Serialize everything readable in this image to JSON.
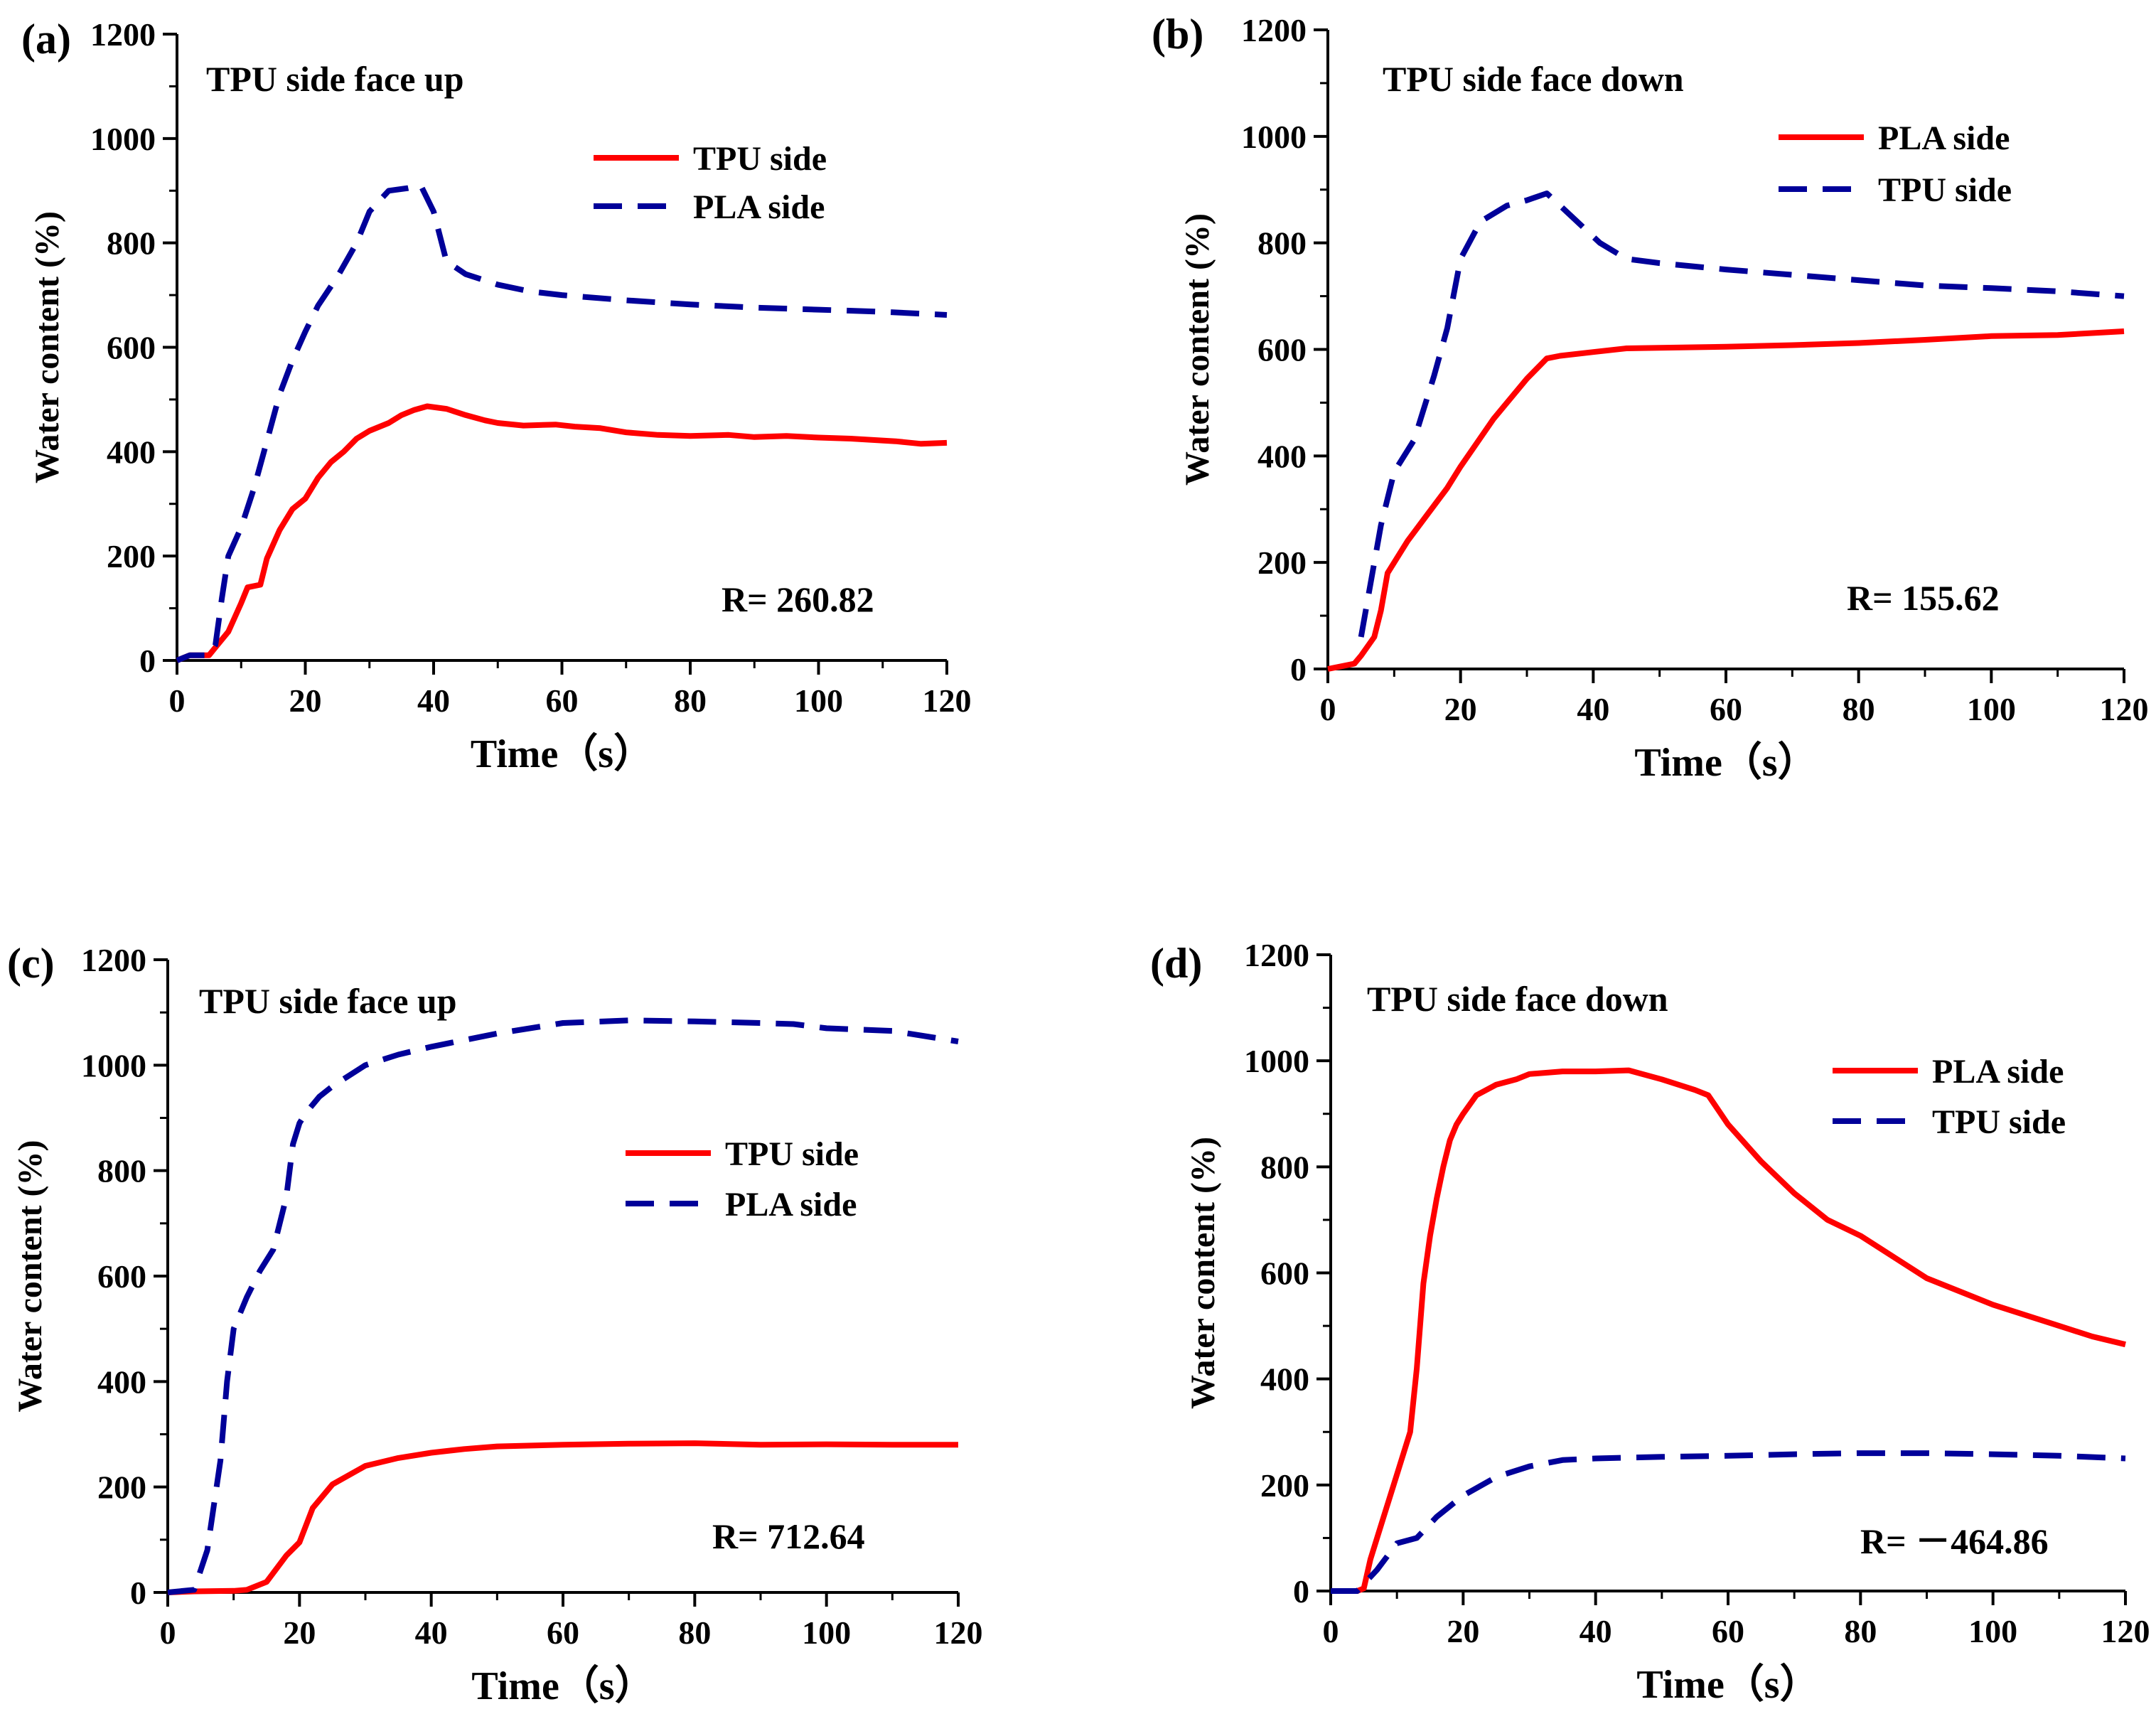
{
  "colors": {
    "red": "#FF0000",
    "blue": "#000099",
    "axis": "#000000"
  },
  "chart_data": [
    {
      "id": "a",
      "type": "line",
      "panel_label": "(a)",
      "title": "TPU side face up",
      "xlabel": "Time（s）",
      "ylabel": "Water content (%)",
      "xlim": [
        0,
        120
      ],
      "ylim": [
        0,
        1200
      ],
      "xticks": [
        "0",
        "20",
        "40",
        "60",
        "80",
        "100",
        "120"
      ],
      "yticks": [
        "0",
        "200",
        "400",
        "600",
        "800",
        "1000",
        "1200"
      ],
      "annotation": "R= 260.82",
      "series": [
        {
          "name": "TPU side",
          "style": "solid",
          "color": "red",
          "x": [
            0,
            2,
            5,
            6,
            8,
            10,
            11,
            13,
            14,
            16,
            18,
            20,
            22,
            24,
            26,
            28,
            30,
            33,
            35,
            37,
            39,
            42,
            45,
            48,
            50,
            54,
            59,
            62,
            66,
            70,
            75,
            80,
            86,
            90,
            95,
            100,
            105,
            112,
            116,
            120
          ],
          "y": [
            0,
            10,
            10,
            25,
            55,
            110,
            140,
            145,
            195,
            250,
            290,
            310,
            350,
            380,
            400,
            425,
            440,
            455,
            470,
            480,
            487,
            482,
            470,
            460,
            455,
            450,
            452,
            448,
            445,
            437,
            432,
            430,
            432,
            428,
            430,
            427,
            425,
            420,
            415,
            417
          ]
        },
        {
          "name": "PLA side",
          "style": "dashed",
          "color": "blue",
          "x": [
            0,
            2,
            5,
            6,
            7,
            8,
            10,
            12,
            14,
            16,
            18,
            20,
            22,
            25,
            28,
            30,
            33,
            36,
            38,
            40,
            42,
            45,
            50,
            55,
            60,
            70,
            80,
            90,
            100,
            110,
            120
          ],
          "y": [
            0,
            10,
            10,
            30,
            120,
            200,
            255,
            330,
            420,
            510,
            575,
            630,
            680,
            735,
            800,
            860,
            900,
            905,
            910,
            860,
            765,
            740,
            720,
            707,
            700,
            690,
            682,
            676,
            672,
            668,
            662
          ]
        }
      ]
    },
    {
      "id": "b",
      "type": "line",
      "panel_label": "(b)",
      "title": "TPU side face down",
      "xlabel": "Time（s）",
      "ylabel": "Water content (%)",
      "xlim": [
        0,
        120
      ],
      "ylim": [
        0,
        1200
      ],
      "xticks": [
        "0",
        "20",
        "40",
        "60",
        "80",
        "100",
        "120"
      ],
      "yticks": [
        "0",
        "200",
        "400",
        "600",
        "800",
        "1000",
        "1200"
      ],
      "annotation": "R= 155.62",
      "series": [
        {
          "name": "PLA side",
          "style": "solid",
          "color": "red",
          "x": [
            0,
            2,
            4,
            5,
            7,
            8,
            9,
            12,
            15,
            18,
            20,
            25,
            30,
            33,
            35,
            40,
            45,
            50,
            60,
            70,
            80,
            90,
            100,
            110,
            120
          ],
          "y": [
            0,
            5,
            10,
            25,
            60,
            110,
            180,
            240,
            290,
            340,
            380,
            470,
            545,
            583,
            588,
            595,
            602,
            603,
            605,
            608,
            612,
            618,
            625,
            627,
            634
          ]
        },
        {
          "name": "TPU side",
          "style": "dashed",
          "color": "blue",
          "x": [
            5,
            6,
            8,
            10,
            13,
            16,
            18,
            20,
            23,
            27,
            30,
            33,
            35,
            38,
            41,
            45,
            50,
            60,
            70,
            80,
            90,
            100,
            110,
            120
          ],
          "y": [
            60,
            130,
            270,
            370,
            430,
            550,
            640,
            770,
            840,
            870,
            880,
            893,
            870,
            835,
            800,
            770,
            762,
            750,
            740,
            730,
            720,
            715,
            709,
            700
          ]
        }
      ]
    },
    {
      "id": "c",
      "type": "line",
      "panel_label": "(c)",
      "title": "TPU side face up",
      "xlabel": "Time（s）",
      "ylabel": "Water content (%)",
      "xlim": [
        0,
        120
      ],
      "ylim": [
        0,
        1200
      ],
      "xticks": [
        "0",
        "20",
        "40",
        "60",
        "80",
        "100",
        "120"
      ],
      "yticks": [
        "0",
        "200",
        "400",
        "600",
        "800",
        "1000",
        "1200"
      ],
      "annotation": "R= 712.64",
      "series": [
        {
          "name": "TPU side",
          "style": "solid",
          "color": "red",
          "x": [
            0,
            4,
            10,
            12,
            15,
            18,
            20,
            22,
            25,
            30,
            35,
            40,
            45,
            50,
            60,
            70,
            80,
            90,
            100,
            110,
            120
          ],
          "y": [
            0,
            2,
            3,
            5,
            20,
            70,
            95,
            160,
            205,
            240,
            255,
            265,
            272,
            277,
            280,
            282,
            283,
            280,
            281,
            280,
            280
          ]
        },
        {
          "name": "PLA side",
          "style": "dashed",
          "color": "blue",
          "x": [
            0,
            4,
            6,
            8,
            9,
            10,
            12,
            14,
            16,
            18,
            19,
            20,
            21,
            23,
            25,
            30,
            35,
            40,
            50,
            60,
            70,
            80,
            90,
            95,
            100,
            110,
            120
          ],
          "y": [
            0,
            5,
            80,
            250,
            400,
            500,
            560,
            610,
            650,
            750,
            850,
            890,
            910,
            940,
            960,
            1000,
            1020,
            1035,
            1060,
            1080,
            1085,
            1083,
            1080,
            1078,
            1070,
            1065,
            1045
          ]
        }
      ]
    },
    {
      "id": "d",
      "type": "line",
      "panel_label": "(d)",
      "title": "TPU side face down",
      "xlabel": "Time（s）",
      "ylabel": "Water content (%)",
      "xlim": [
        0,
        120
      ],
      "ylim": [
        0,
        1200
      ],
      "xticks": [
        "0",
        "20",
        "40",
        "60",
        "80",
        "100",
        "120"
      ],
      "yticks": [
        "0",
        "200",
        "400",
        "600",
        "800",
        "1000",
        "1200"
      ],
      "annotation": "R= －464.86",
      "series": [
        {
          "name": "PLA side",
          "style": "solid",
          "color": "red",
          "x": [
            0,
            4,
            5,
            6,
            7,
            8,
            10,
            12,
            13,
            14,
            15,
            16,
            17,
            18,
            19,
            20,
            22,
            25,
            28,
            30,
            35,
            40,
            45,
            50,
            55,
            57,
            60,
            65,
            70,
            75,
            80,
            90,
            95,
            100,
            110,
            115,
            120
          ],
          "y": [
            0,
            0,
            5,
            60,
            100,
            140,
            220,
            300,
            420,
            580,
            670,
            740,
            800,
            850,
            880,
            900,
            935,
            955,
            965,
            975,
            980,
            980,
            982,
            965,
            945,
            935,
            880,
            810,
            750,
            700,
            670,
            590,
            565,
            540,
            500,
            480,
            465
          ]
        },
        {
          "name": "TPU side",
          "style": "dashed",
          "color": "blue",
          "x": [
            0,
            4,
            7,
            10,
            13,
            16,
            18,
            20,
            25,
            30,
            35,
            40,
            50,
            60,
            70,
            80,
            90,
            100,
            110,
            120
          ],
          "y": [
            0,
            0,
            40,
            90,
            100,
            140,
            160,
            180,
            215,
            235,
            247,
            250,
            253,
            255,
            258,
            260,
            260,
            258,
            255,
            250
          ]
        }
      ]
    }
  ]
}
